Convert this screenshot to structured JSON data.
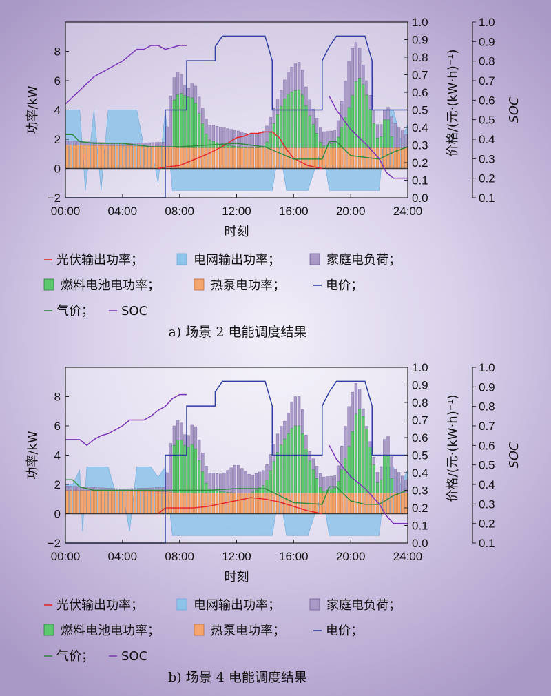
{
  "chart_data": [
    {
      "type": "bar",
      "caption": "a) 场景 2 电能调度结果",
      "xlabel": "时刻",
      "ylabel": "功率/kW",
      "ylabel_right1": "价格/(元·(kW·h)⁻¹)",
      "ylabel_right2": "SOC",
      "xticks": [
        "00:00",
        "04:00",
        "08:00",
        "12:00",
        "16:00",
        "20:00",
        "24:00"
      ],
      "xlim": [
        0,
        24
      ],
      "ylim": [
        -2,
        10
      ],
      "yticks": [
        -2,
        0,
        2,
        4,
        6,
        8
      ],
      "ylim_right": [
        0,
        1
      ],
      "yticks_right": [
        "0.0",
        "0.1",
        "0.2",
        "0.3",
        "0.4",
        "0.5",
        "0.6",
        "0.7",
        "0.8",
        "0.9",
        "1.0"
      ],
      "soc_ylim": [
        0.1,
        1
      ],
      "soc_ticks": [
        "0.1",
        "0.2",
        "0.3",
        "0.4",
        "0.5",
        "0.6",
        "0.7",
        "0.8",
        "0.9",
        "1.0"
      ],
      "legend": {
        "pv": "光伏输出功率；",
        "grid": "电网输出功率；",
        "load": "家庭电负荷；",
        "fc": "燃料电池电功率；",
        "hp": "热泵电功率；",
        "price": "电价；",
        "gas": "气价；",
        "soc": "SOC"
      },
      "colors": {
        "pv": "#e8282b",
        "grid": "#8ec3ea",
        "load": "#a99ac8",
        "fc": "#5cc96e",
        "hp": "#f4a66e",
        "price": "#2f3fa3",
        "gas": "#2f8a3e",
        "soc": "#7a34b8"
      },
      "series": [
        {
          "name": "电价",
          "x": [
            0,
            7,
            7,
            8.5,
            8.5,
            10.5,
            10.5,
            11,
            11.5,
            13.5,
            14,
            14.5,
            14.5,
            18,
            18,
            18.5,
            19,
            20.5,
            21,
            21.5,
            21.5,
            22,
            24
          ],
          "y": [
            0,
            0,
            0.5,
            0.5,
            0.78,
            0.78,
            0.86,
            0.92,
            0.92,
            0.92,
            0.92,
            0.78,
            0.5,
            0.5,
            0.78,
            0.86,
            0.92,
            0.92,
            0.92,
            0.78,
            0.5,
            0.5,
            0.5
          ]
        },
        {
          "name": "气价",
          "x": [
            0,
            0.5,
            1,
            2,
            4,
            6,
            8,
            10,
            12,
            14,
            16,
            18,
            18.5,
            19,
            20,
            21,
            22,
            23,
            24
          ],
          "y": [
            0.36,
            0.36,
            0.32,
            0.31,
            0.31,
            0.29,
            0.29,
            0.3,
            0.31,
            0.29,
            0.22,
            0.22,
            0.32,
            0.32,
            0.24,
            0.23,
            0.22,
            0.26,
            0.29
          ]
        },
        {
          "name": "SOC",
          "x": [
            0,
            1,
            2,
            2.5,
            3,
            4,
            5,
            5.5,
            6,
            6.5,
            7,
            7.5,
            8,
            8.5
          ],
          "y": [
            0.58,
            0.65,
            0.72,
            0.74,
            0.76,
            0.8,
            0.86,
            0.86,
            0.88,
            0.88,
            0.86,
            0.87,
            0.88,
            0.88
          ]
        },
        {
          "name": "SOC",
          "x": [
            18.5,
            19,
            20,
            21,
            22,
            22.5,
            23,
            24
          ],
          "y": [
            0.62,
            0.55,
            0.45,
            0.38,
            0.3,
            0.23,
            0.2,
            0.2
          ]
        },
        {
          "name": "光伏输出功率",
          "x": [
            6.5,
            7,
            8,
            9,
            10,
            11,
            12,
            12.5,
            13,
            13.5,
            14,
            14.5,
            15,
            15.5,
            16,
            17,
            18
          ],
          "y": [
            0,
            0.1,
            0.2,
            0.6,
            1.0,
            1.5,
            2.1,
            2.2,
            2.4,
            2.4,
            2.5,
            2.5,
            2.1,
            1.3,
            0.7,
            0.2,
            0
          ]
        },
        {
          "name": "电网输出功率",
          "x": [
            0,
            0.5,
            1,
            1.4,
            2,
            2.5,
            3,
            3.5,
            4,
            5,
            5.5,
            6,
            6.5,
            7,
            7.5,
            9,
            14.5,
            15,
            15.5,
            17,
            18,
            18.5,
            20,
            21,
            22,
            22.5,
            23,
            23.5,
            24
          ],
          "y": [
            4,
            4,
            4,
            -1.5,
            4,
            -1.5,
            4,
            4,
            4,
            4,
            1.5,
            1.5,
            -1,
            4,
            -1.5,
            -1.5,
            -1.5,
            1.5,
            -1.5,
            -1.5,
            1.5,
            -1.5,
            -1.5,
            -1.5,
            -1.5,
            4,
            4,
            2,
            3
          ]
        },
        {
          "name": "家庭电负荷",
          "x": [
            0,
            2,
            4,
            7,
            7.5,
            8,
            8.5,
            9,
            10,
            11,
            12,
            13,
            14,
            15,
            15.5,
            16,
            16.5,
            17,
            18,
            19,
            20,
            20.5,
            21,
            22,
            22.5,
            23,
            24
          ],
          "y": [
            1.9,
            1.8,
            1.7,
            1.8,
            6,
            6.8,
            5.3,
            6,
            3,
            2.8,
            2.6,
            2.3,
            2.6,
            5,
            6.4,
            7.1,
            7.3,
            5,
            2.5,
            2.6,
            8,
            8.8,
            6.5,
            2.5,
            4.5,
            3.2,
            2.2
          ]
        },
        {
          "name": "燃料电池电功率",
          "x": [
            7.5,
            8,
            8.5,
            9,
            10,
            11,
            12,
            13,
            14,
            15,
            15.5,
            16,
            16.5,
            17,
            18,
            19,
            20,
            20.5,
            21,
            22,
            22.5,
            23
          ],
          "y": [
            4.5,
            5.2,
            4.9,
            4.8,
            2,
            1.6,
            1.5,
            1.4,
            1.5,
            4,
            5,
            5.3,
            5.4,
            3.9,
            1.5,
            1.8,
            4.5,
            6.4,
            5.5,
            1.6,
            3.9,
            1.6
          ]
        },
        {
          "name": "热泵电功率",
          "x": [
            0,
            7,
            8,
            12,
            16,
            20,
            24
          ],
          "y": [
            1.6,
            1.5,
            1.4,
            1.4,
            1.4,
            1.4,
            1.4
          ]
        }
      ]
    },
    {
      "type": "bar",
      "caption": "b) 场景 4 电能调度结果",
      "xlabel": "时刻",
      "ylabel": "功率/kW",
      "ylabel_right1": "价格/(元·(kW·h)⁻¹)",
      "ylabel_right2": "SOC",
      "xticks": [
        "00:00",
        "04:00",
        "08:00",
        "12:00",
        "16:00",
        "20:00",
        "24:00"
      ],
      "xlim": [
        0,
        24
      ],
      "ylim": [
        -2,
        10
      ],
      "yticks": [
        -2,
        0,
        2,
        4,
        6,
        8
      ],
      "ylim_right": [
        0,
        1
      ],
      "yticks_right": [
        "0.0",
        "0.1",
        "0.2",
        "0.3",
        "0.4",
        "0.5",
        "0.6",
        "0.7",
        "0.8",
        "0.9",
        "1.0"
      ],
      "soc_ylim": [
        0.1,
        1
      ],
      "soc_ticks": [
        "0.1",
        "0.2",
        "0.3",
        "0.4",
        "0.5",
        "0.6",
        "0.7",
        "0.8",
        "0.9",
        "1.0"
      ],
      "legend": {
        "pv": "光伏输出功率；",
        "grid": "电网输出功率；",
        "load": "家庭电负荷；",
        "fc": "燃料电池电功率；",
        "hp": "热泵电功率；",
        "price": "电价；",
        "gas": "气价；",
        "soc": "SOC"
      },
      "colors": {
        "pv": "#e8282b",
        "grid": "#8ec3ea",
        "load": "#a99ac8",
        "fc": "#5cc96e",
        "hp": "#f4a66e",
        "price": "#2f3fa3",
        "gas": "#2f8a3e",
        "soc": "#7a34b8"
      },
      "series": [
        {
          "name": "电价",
          "x": [
            0,
            7,
            7,
            8.5,
            8.5,
            10.5,
            10.5,
            11,
            11.5,
            13.5,
            14,
            14.5,
            14.5,
            18,
            18,
            18.5,
            19,
            20.5,
            21,
            21.5,
            21.5,
            22,
            24
          ],
          "y": [
            0,
            0,
            0.5,
            0.5,
            0.78,
            0.78,
            0.86,
            0.92,
            0.92,
            0.92,
            0.92,
            0.78,
            0.5,
            0.5,
            0.78,
            0.86,
            0.92,
            0.92,
            0.92,
            0.78,
            0.5,
            0.5,
            0.5
          ]
        },
        {
          "name": "气价",
          "x": [
            0,
            0.5,
            1,
            2,
            4,
            6,
            8,
            10,
            12,
            14,
            16,
            18,
            18.5,
            19,
            20,
            21,
            22,
            23,
            24
          ],
          "y": [
            0.36,
            0.36,
            0.32,
            0.3,
            0.3,
            0.3,
            0.3,
            0.3,
            0.31,
            0.31,
            0.23,
            0.22,
            0.32,
            0.32,
            0.24,
            0.22,
            0.22,
            0.27,
            0.3
          ]
        },
        {
          "name": "SOC",
          "x": [
            0,
            0.5,
            1,
            1.5,
            2,
            2.5,
            3,
            3.5,
            4,
            4.5,
            5,
            5.5,
            6,
            6.5,
            7,
            7.5,
            8,
            8.5
          ],
          "y": [
            0.63,
            0.63,
            0.63,
            0.6,
            0.63,
            0.65,
            0.66,
            0.68,
            0.7,
            0.73,
            0.73,
            0.73,
            0.75,
            0.78,
            0.8,
            0.84,
            0.86,
            0.86
          ]
        },
        {
          "name": "SOC",
          "x": [
            18.5,
            19,
            20,
            21,
            22,
            22.5,
            23,
            24
          ],
          "y": [
            0.6,
            0.53,
            0.44,
            0.38,
            0.3,
            0.24,
            0.2,
            0.2
          ]
        },
        {
          "name": "光伏输出功率",
          "x": [
            6.5,
            7,
            8,
            9,
            10,
            11,
            12,
            13,
            14,
            15,
            16,
            17,
            18
          ],
          "y": [
            0,
            0.4,
            0.4,
            0.4,
            0.5,
            0.7,
            0.9,
            1.1,
            1.0,
            0.8,
            0.5,
            0.2,
            0
          ]
        },
        {
          "name": "电网输出功率",
          "x": [
            0,
            0.5,
            1,
            1.2,
            1.5,
            2,
            2.5,
            3,
            3.5,
            4,
            4.5,
            5,
            5.5,
            6,
            6.5,
            7,
            7.5,
            9,
            14.5,
            15,
            15.5,
            17,
            18,
            18.5,
            20,
            21,
            22,
            22.5,
            23,
            23.5,
            24
          ],
          "y": [
            2,
            2,
            3,
            -1.2,
            3.2,
            3.2,
            3.2,
            3.2,
            1.5,
            1.5,
            -1.2,
            3.2,
            3.2,
            3.2,
            2.5,
            3.2,
            -1.5,
            -1.5,
            -1.5,
            1.5,
            -1.5,
            -1.5,
            1.5,
            -1.5,
            -1.5,
            -1.5,
            -1.5,
            3.2,
            3.2,
            2,
            3
          ]
        },
        {
          "name": "家庭电负荷",
          "x": [
            0,
            2,
            4,
            7,
            7.5,
            8,
            8.5,
            9,
            10,
            11,
            12,
            13,
            14,
            15,
            15.5,
            16,
            16.5,
            17,
            18,
            19,
            20,
            20.5,
            21,
            22,
            22.5,
            23,
            24
          ],
          "y": [
            1.9,
            1.8,
            1.7,
            1.8,
            5.8,
            6.6,
            5,
            6.4,
            2.8,
            2.7,
            3.4,
            2.6,
            3,
            5.8,
            6.5,
            8,
            8,
            4.5,
            2.5,
            2.6,
            8,
            9.2,
            6.5,
            2.3,
            6,
            3.2,
            2.2
          ]
        },
        {
          "name": "燃料电池电功率",
          "x": [
            7.5,
            8,
            8.5,
            9,
            10,
            11,
            12,
            13,
            14,
            15,
            15.5,
            16,
            16.5,
            17,
            18,
            19,
            20,
            20.5,
            21,
            22,
            22.5,
            23
          ],
          "y": [
            4.5,
            5.2,
            4.5,
            4.8,
            1.7,
            1.5,
            1.4,
            1.4,
            2.0,
            4.5,
            5.3,
            6,
            6,
            3.9,
            1.5,
            1.8,
            5,
            7.4,
            6.4,
            1.5,
            4.8,
            1.6
          ]
        },
        {
          "name": "热泵电功率",
          "x": [
            0,
            7,
            8,
            12,
            16,
            20,
            24
          ],
          "y": [
            1.6,
            1.5,
            1.4,
            1.4,
            1.4,
            1.4,
            1.4
          ]
        }
      ]
    }
  ]
}
